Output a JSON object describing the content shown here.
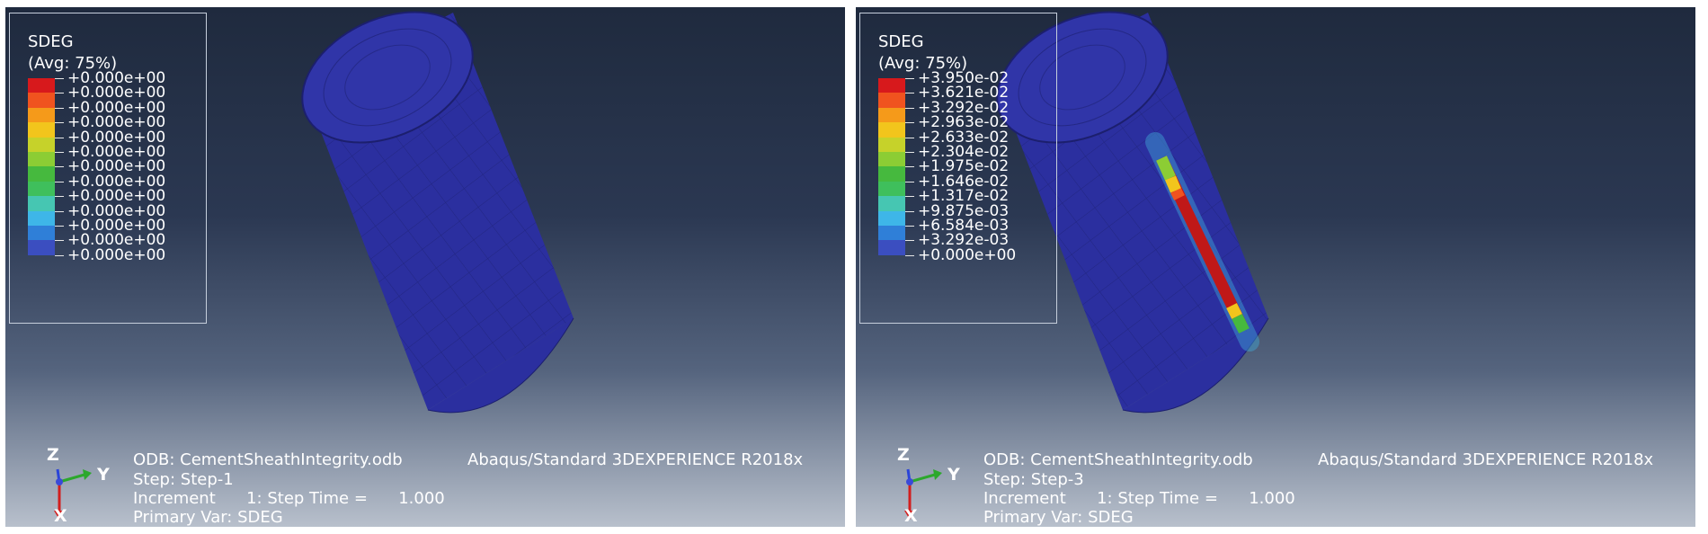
{
  "panels": [
    {
      "legend": {
        "var": "SDEG",
        "avg": "(Avg: 75%)",
        "labels": [
          "+0.000e+00",
          "+0.000e+00",
          "+0.000e+00",
          "+0.000e+00",
          "+0.000e+00",
          "+0.000e+00",
          "+0.000e+00",
          "+0.000e+00",
          "+0.000e+00",
          "+0.000e+00",
          "+0.000e+00",
          "+0.000e+00",
          "+0.000e+00"
        ]
      },
      "info": {
        "odb": "ODB: CementSheathIntegrity.odb",
        "solver": "Abaqus/Standard 3DEXPERIENCE R2018x",
        "step": "Step: Step-1",
        "increment": "Increment      1: Step Time =      1.000",
        "primary": "Primary Var: SDEG"
      },
      "triad": {
        "z": "Z",
        "y": "Y",
        "x": "X"
      },
      "damage_band": false
    },
    {
      "legend": {
        "var": "SDEG",
        "avg": "(Avg: 75%)",
        "labels": [
          "+3.950e-02",
          "+3.621e-02",
          "+3.292e-02",
          "+2.963e-02",
          "+2.633e-02",
          "+2.304e-02",
          "+1.975e-02",
          "+1.646e-02",
          "+1.317e-02",
          "+9.875e-03",
          "+6.584e-03",
          "+3.292e-03",
          "+0.000e+00"
        ]
      },
      "info": {
        "odb": "ODB: CementSheathIntegrity.odb",
        "solver": "Abaqus/Standard 3DEXPERIENCE R2018x",
        "step": "Step: Step-3",
        "increment": "Increment      1: Step Time =      1.000",
        "primary": "Primary Var: SDEG"
      },
      "triad": {
        "z": "Z",
        "y": "Y",
        "x": "X"
      },
      "damage_band": true
    }
  ],
  "colors": {
    "contour": [
      "#d7191c",
      "#f0531f",
      "#f59a1a",
      "#f2c51c",
      "#c6d22a",
      "#8ccd34",
      "#46b93e",
      "#3fbf5c",
      "#46c6b2",
      "#3eb6e8",
      "#2f7fd8",
      "#3b4ec0",
      "#3a3db3"
    ],
    "mesh_base": "#2a2e9c"
  }
}
